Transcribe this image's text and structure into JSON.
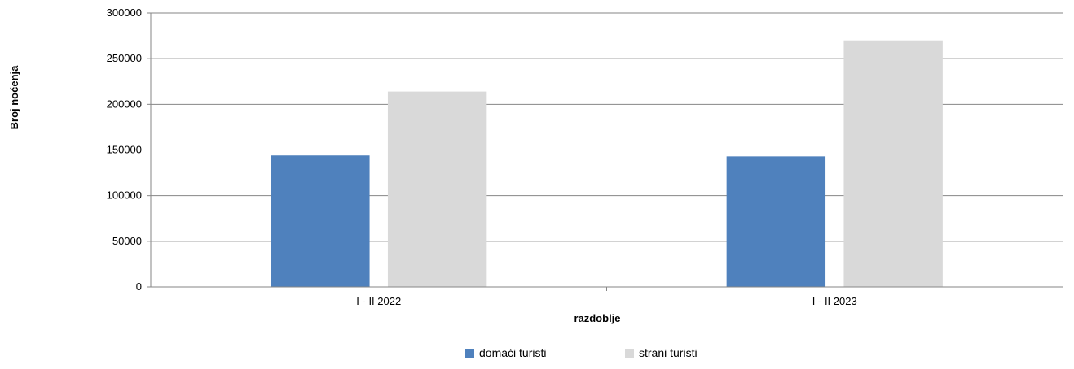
{
  "chart_data": {
    "type": "bar",
    "categories": [
      "I - II 2022",
      "I - II 2023"
    ],
    "series": [
      {
        "name": "domaći turisti",
        "values": [
          144000,
          143000
        ],
        "color": "#4f81bd"
      },
      {
        "name": "strani turisti",
        "values": [
          214000,
          270000
        ],
        "color": "#d9d9d9"
      }
    ],
    "xlabel": "razdoblje",
    "ylabel": "Broj noćenja",
    "ylim": [
      0,
      300000
    ],
    "yticks": [
      "0",
      "50000",
      "100000",
      "150000",
      "200000",
      "250000",
      "300000"
    ],
    "grid": true,
    "legend_position": "bottom-center"
  }
}
